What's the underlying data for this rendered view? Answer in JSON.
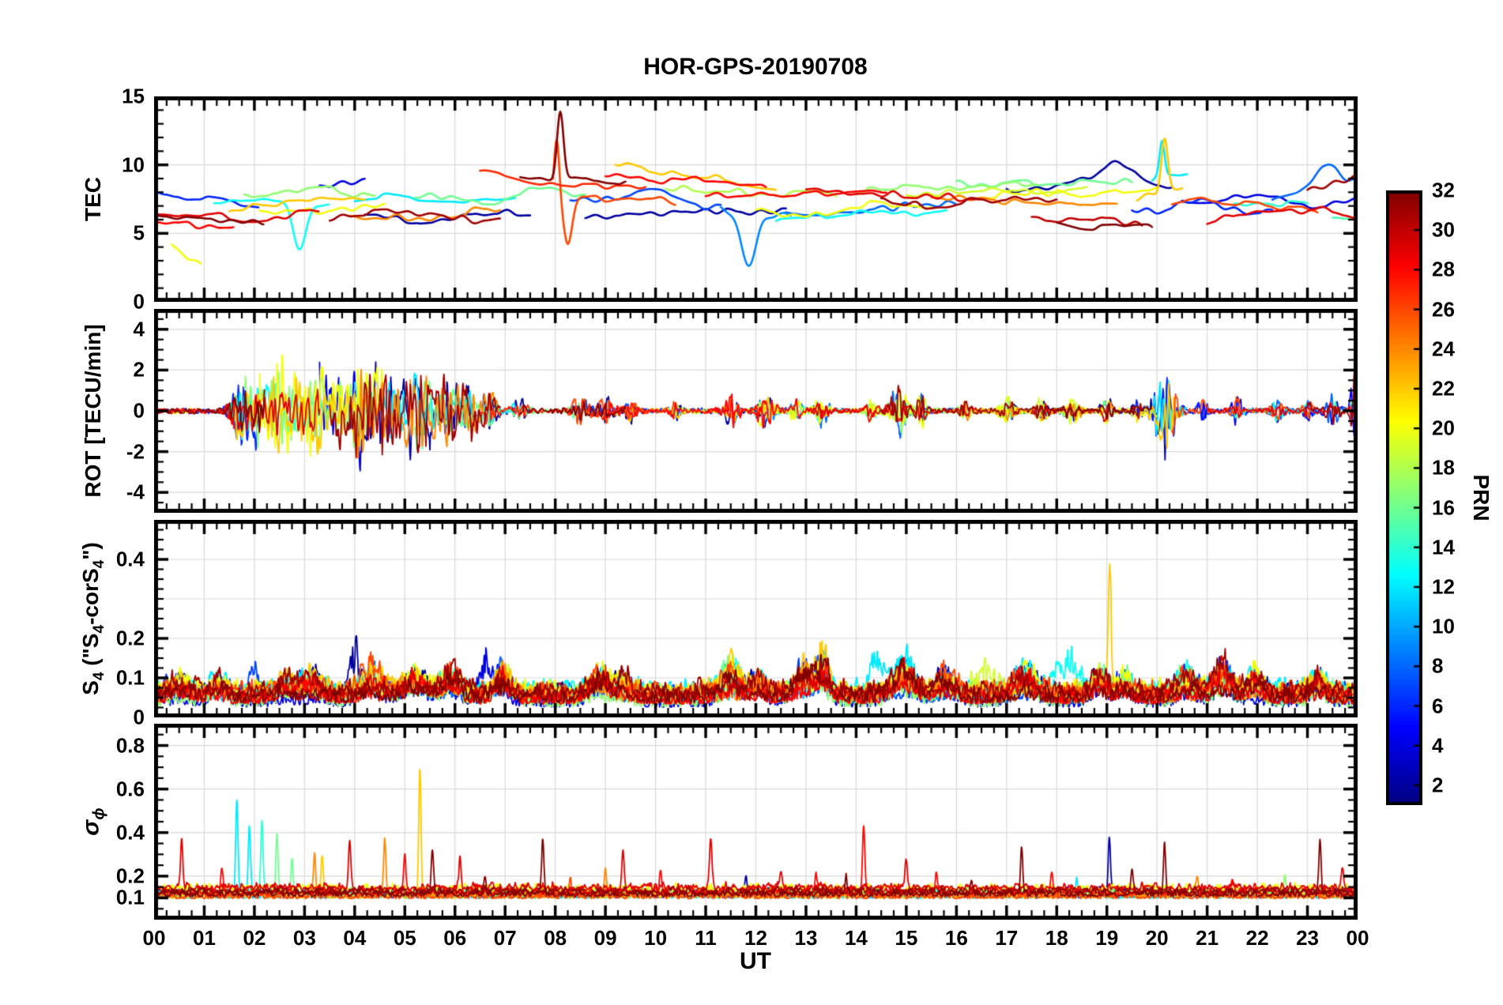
{
  "title": "HOR-GPS-20190708",
  "xlabel": "UT",
  "style": {
    "background": "#ffffff",
    "axis": "#000000",
    "grid": "#d9d9d9"
  },
  "colorbar": {
    "label": "PRN",
    "min": 1,
    "max": 32,
    "ticks": [
      2,
      4,
      6,
      8,
      10,
      12,
      14,
      16,
      18,
      20,
      22,
      24,
      26,
      28,
      30,
      32
    ],
    "colormap": "jet"
  },
  "x_axis": {
    "min": 0,
    "max": 24,
    "major_step": 1,
    "minor_step": 0.25,
    "tick_labels": [
      "00",
      "01",
      "02",
      "03",
      "04",
      "05",
      "06",
      "07",
      "08",
      "09",
      "10",
      "11",
      "12",
      "13",
      "14",
      "15",
      "16",
      "17",
      "18",
      "19",
      "20",
      "21",
      "22",
      "23",
      "00"
    ]
  },
  "chart_data": [
    {
      "type": "line",
      "id": "tec",
      "ylabel": "TEC",
      "ylim": [
        0,
        15
      ],
      "yticks": [
        0,
        5,
        10,
        15
      ],
      "minor_step": 1,
      "x_range": [
        0,
        24
      ],
      "grid": true,
      "segments": [
        [
          6,
          0,
          2.1,
          7.2,
          -0.8
        ],
        [
          28,
          0,
          1.6,
          6.0,
          0
        ],
        [
          29,
          0,
          3.3,
          6.2,
          0.3
        ],
        [
          20,
          0.35,
          0.95,
          3.6,
          -1.8
        ],
        [
          32,
          0,
          2.2,
          5.8,
          0.2
        ],
        [
          13,
          1.2,
          3.5,
          7.3,
          -0.5
        ],
        [
          22,
          1.5,
          4.2,
          7.0,
          0.5
        ],
        [
          17,
          1.8,
          4.4,
          7.9,
          -0.3
        ],
        [
          20,
          2.1,
          4.6,
          6.9,
          0.2
        ],
        [
          4,
          3.3,
          4.2,
          8.8,
          0.4
        ],
        [
          31,
          3.5,
          6.9,
          6.1,
          0.3
        ],
        [
          24,
          3.9,
          6.9,
          6.4,
          0.4
        ],
        [
          12,
          4.0,
          7.2,
          7.4,
          0.3
        ],
        [
          2,
          4.2,
          7.5,
          6.1,
          0.5
        ],
        [
          16,
          5.2,
          8.6,
          7.8,
          1.0
        ],
        [
          27,
          6.5,
          9.8,
          9.0,
          -0.6
        ],
        [
          32,
          7.3,
          9.4,
          8.6,
          -0.5
        ],
        [
          26,
          7.95,
          10.4,
          7.6,
          -1.0
        ],
        [
          7,
          8.3,
          11.3,
          7.6,
          -0.4
        ],
        [
          2,
          8.6,
          12.6,
          6.2,
          0.3
        ],
        [
          28,
          9.0,
          12.2,
          8.8,
          -0.8
        ],
        [
          22,
          9.2,
          12.4,
          9.2,
          -1.6
        ],
        [
          18,
          10.2,
          13.6,
          7.9,
          -0.4
        ],
        [
          9,
          11.3,
          12.7,
          6.6,
          0
        ],
        [
          28,
          11.0,
          14.6,
          7.4,
          0.3
        ],
        [
          20,
          12.0,
          15.5,
          6.6,
          0.4
        ],
        [
          13,
          12.4,
          15.8,
          6.1,
          0.3
        ],
        [
          8,
          12.6,
          16.0,
          7.1,
          0.4
        ],
        [
          29,
          13.0,
          16.5,
          7.9,
          -0.3
        ],
        [
          17,
          14.0,
          17.6,
          8.0,
          0.3
        ],
        [
          31,
          14.5,
          18.0,
          7.3,
          -0.4
        ],
        [
          19,
          15.0,
          18.6,
          8.2,
          0.3
        ],
        [
          24,
          15.5,
          19.2,
          7.1,
          -0.5
        ],
        [
          16,
          16.0,
          19.5,
          8.5,
          -0.3
        ],
        [
          20,
          16.5,
          20.0,
          8.0,
          -0.5
        ],
        [
          2,
          17.0,
          20.3,
          8.3,
          0.6
        ],
        [
          30,
          17.5,
          19.7,
          6.1,
          -0.8
        ],
        [
          32,
          18.0,
          19.9,
          5.7,
          -0.3
        ],
        [
          22,
          19.6,
          20.5,
          7.8,
          0.6
        ],
        [
          12,
          19.9,
          20.6,
          8.8,
          0.5
        ],
        [
          6,
          19.5,
          22.3,
          6.9,
          -0.3
        ],
        [
          26,
          20.3,
          23.2,
          6.7,
          -0.9
        ],
        [
          4,
          20.5,
          24,
          7.4,
          0.4
        ],
        [
          29,
          21.0,
          24,
          6.2,
          0.4
        ],
        [
          14,
          21.5,
          23.0,
          6.9,
          -0.4
        ],
        [
          15,
          23.5,
          24,
          5.6,
          0.3
        ],
        [
          8,
          22.3,
          24,
          8.2,
          1.2
        ],
        [
          31,
          23.0,
          24,
          8.8,
          0.8
        ]
      ],
      "features": [
        [
          32,
          8.1,
          0.09,
          4.9
        ],
        [
          26,
          8.03,
          0.07,
          4.2
        ],
        [
          26,
          8.25,
          0.12,
          -3.4
        ],
        [
          22,
          20.15,
          0.09,
          3.9
        ],
        [
          12,
          20.1,
          0.07,
          2.6
        ],
        [
          9,
          11.85,
          0.22,
          -3.6
        ],
        [
          13,
          2.9,
          0.18,
          -3.2
        ],
        [
          2,
          19.25,
          0.45,
          1.5
        ],
        [
          8,
          23.35,
          0.35,
          1.8
        ]
      ]
    },
    {
      "type": "line",
      "id": "rot",
      "ylabel": "ROT [TECU/min]",
      "ylim": [
        -5,
        5
      ],
      "yticks": [
        -4,
        -2,
        0,
        2,
        4
      ],
      "minor_step": 0.5,
      "x_range": [
        0,
        24
      ],
      "grid": true,
      "base_amp": 0.16,
      "bursts": [
        [
          1.7,
          0.2,
          1.1
        ],
        [
          2.1,
          0.3,
          1.3
        ],
        [
          2.5,
          0.2,
          1.5
        ],
        [
          2.9,
          0.25,
          1.4
        ],
        [
          3.3,
          0.2,
          1.6
        ],
        [
          3.7,
          0.15,
          1.2
        ],
        [
          4.05,
          0.18,
          1.8
        ],
        [
          4.4,
          0.2,
          1.2
        ],
        [
          4.7,
          0.25,
          1.3
        ],
        [
          5.1,
          0.2,
          1.2
        ],
        [
          5.4,
          0.25,
          1.5
        ],
        [
          5.9,
          0.2,
          1.3
        ],
        [
          6.3,
          0.2,
          1.0
        ],
        [
          6.7,
          0.15,
          0.8
        ],
        [
          7.3,
          0.15,
          0.5
        ],
        [
          8.5,
          0.18,
          0.6
        ],
        [
          9.0,
          0.2,
          0.5
        ],
        [
          9.5,
          0.12,
          0.4
        ],
        [
          10.4,
          0.1,
          0.3
        ],
        [
          11.5,
          0.15,
          0.6
        ],
        [
          12.2,
          0.18,
          0.6
        ],
        [
          12.8,
          0.12,
          0.4
        ],
        [
          13.3,
          0.15,
          0.5
        ],
        [
          14.3,
          0.12,
          0.4
        ],
        [
          14.85,
          0.18,
          0.8
        ],
        [
          15.3,
          0.12,
          0.5
        ],
        [
          16.2,
          0.12,
          0.35
        ],
        [
          17.0,
          0.15,
          0.45
        ],
        [
          17.7,
          0.12,
          0.4
        ],
        [
          18.3,
          0.15,
          0.5
        ],
        [
          19.0,
          0.12,
          0.5
        ],
        [
          19.6,
          0.1,
          0.4
        ],
        [
          20.15,
          0.22,
          1.7
        ],
        [
          20.9,
          0.1,
          0.35
        ],
        [
          21.6,
          0.12,
          0.4
        ],
        [
          22.4,
          0.12,
          0.4
        ],
        [
          23.0,
          0.1,
          0.35
        ],
        [
          23.5,
          0.15,
          0.5
        ],
        [
          23.95,
          0.08,
          1.6
        ]
      ]
    },
    {
      "type": "line",
      "id": "s4",
      "ylabel": "S_{4} (\"S_{4}-corS_{4}\")",
      "ylim": [
        0,
        0.5
      ],
      "yticks": [
        0,
        0.1,
        0.2,
        0.4
      ],
      "grid_extra": [
        0.3
      ],
      "minor_step": 0.025,
      "x_range": [
        0,
        24
      ],
      "grid": true,
      "baseline": 0.04,
      "noise_amp": 0.05,
      "prns": [
        2,
        4,
        6,
        7,
        8,
        11,
        12,
        13,
        16,
        17,
        19,
        20,
        22,
        24,
        26,
        28,
        29,
        31,
        32
      ],
      "bursts": [
        [
          0.5,
          0.3,
          0.06,
          0
        ],
        [
          1.3,
          0.2,
          0.05,
          0
        ],
        [
          2.0,
          0.15,
          0.12,
          7
        ],
        [
          2.6,
          0.2,
          0.06,
          0
        ],
        [
          3.1,
          0.3,
          0.07,
          0
        ],
        [
          4.0,
          0.12,
          0.15,
          2
        ],
        [
          4.35,
          0.3,
          0.09,
          0
        ],
        [
          5.2,
          0.3,
          0.07,
          0
        ],
        [
          5.9,
          0.25,
          0.08,
          0
        ],
        [
          6.6,
          0.2,
          0.13,
          4
        ],
        [
          6.95,
          0.2,
          0.1,
          0
        ],
        [
          8.9,
          0.25,
          0.08,
          0
        ],
        [
          9.35,
          0.2,
          0.06,
          0
        ],
        [
          11.5,
          0.25,
          0.1,
          0
        ],
        [
          12.05,
          0.2,
          0.07,
          0
        ],
        [
          13.0,
          0.3,
          0.1,
          0
        ],
        [
          13.35,
          0.15,
          0.13,
          0
        ],
        [
          14.4,
          0.2,
          0.12,
          12
        ],
        [
          14.95,
          0.3,
          0.1,
          0
        ],
        [
          15.8,
          0.25,
          0.08,
          0
        ],
        [
          16.6,
          0.3,
          0.09,
          19
        ],
        [
          17.35,
          0.3,
          0.08,
          0
        ],
        [
          18.2,
          0.3,
          0.11,
          13
        ],
        [
          18.85,
          0.2,
          0.08,
          0
        ],
        [
          19.05,
          0.05,
          0.38,
          22
        ],
        [
          19.35,
          0.2,
          0.07,
          0
        ],
        [
          20.6,
          0.25,
          0.09,
          0
        ],
        [
          21.3,
          0.25,
          0.1,
          0
        ],
        [
          21.95,
          0.2,
          0.08,
          0
        ],
        [
          23.2,
          0.2,
          0.06,
          0
        ]
      ]
    },
    {
      "type": "line",
      "id": "sigma_phi",
      "ylabel": "σ_{ϕ}",
      "ylim": [
        0,
        0.9
      ],
      "yticks": [
        0.1,
        0.2,
        0.4,
        0.6,
        0.8
      ],
      "minor_step": 0.05,
      "x_range": [
        0,
        24
      ],
      "grid": true,
      "baseline": 0.12,
      "noise_amp": 0.04,
      "prns": [
        2,
        6,
        12,
        14,
        16,
        17,
        20,
        22,
        24,
        26,
        28,
        29,
        31,
        32
      ],
      "spikes": [
        [
          0.55,
          0.35,
          29
        ],
        [
          1.35,
          0.25,
          28
        ],
        [
          1.65,
          0.58,
          12
        ],
        [
          1.9,
          0.44,
          12
        ],
        [
          2.15,
          0.46,
          14
        ],
        [
          2.45,
          0.4,
          16
        ],
        [
          2.75,
          0.3,
          16
        ],
        [
          3.2,
          0.32,
          24
        ],
        [
          3.35,
          0.3,
          22
        ],
        [
          3.9,
          0.35,
          29
        ],
        [
          4.6,
          0.38,
          24
        ],
        [
          5.0,
          0.3,
          28
        ],
        [
          5.3,
          0.7,
          22
        ],
        [
          5.55,
          0.33,
          32
        ],
        [
          6.1,
          0.25,
          29
        ],
        [
          6.6,
          0.22,
          32
        ],
        [
          7.75,
          0.38,
          32
        ],
        [
          8.3,
          0.22,
          26
        ],
        [
          9.0,
          0.25,
          24
        ],
        [
          9.35,
          0.3,
          29
        ],
        [
          10.1,
          0.22,
          28
        ],
        [
          11.1,
          0.35,
          29
        ],
        [
          11.8,
          0.2,
          2
        ],
        [
          12.5,
          0.2,
          29
        ],
        [
          13.2,
          0.22,
          28
        ],
        [
          13.8,
          0.2,
          32
        ],
        [
          14.15,
          0.43,
          28
        ],
        [
          15.0,
          0.25,
          29
        ],
        [
          15.6,
          0.22,
          28
        ],
        [
          16.3,
          0.2,
          32
        ],
        [
          17.3,
          0.35,
          32
        ],
        [
          17.9,
          0.22,
          28
        ],
        [
          18.4,
          0.2,
          12
        ],
        [
          19.05,
          0.37,
          2
        ],
        [
          19.5,
          0.25,
          32
        ],
        [
          20.15,
          0.35,
          32
        ],
        [
          20.8,
          0.22,
          24
        ],
        [
          21.5,
          0.2,
          28
        ],
        [
          22.55,
          0.2,
          17
        ],
        [
          23.25,
          0.38,
          32
        ],
        [
          23.7,
          0.22,
          29
        ]
      ]
    }
  ]
}
